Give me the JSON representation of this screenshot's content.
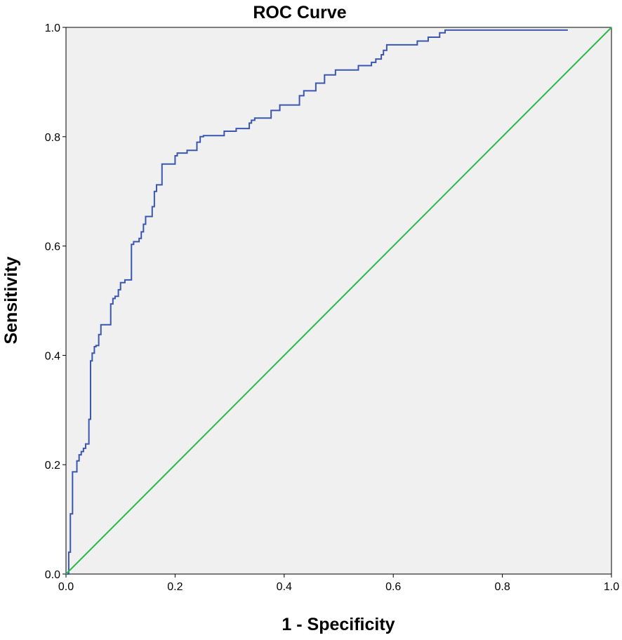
{
  "chart_data": {
    "type": "line",
    "title": "ROC Curve",
    "xlabel": "1 - Specificity",
    "ylabel": "Sensitivity",
    "xlim": [
      0.0,
      1.0
    ],
    "ylim": [
      0.0,
      1.0
    ],
    "x_ticks": [
      "0.0",
      "0.2",
      "0.4",
      "0.6",
      "0.8",
      "1.0"
    ],
    "y_ticks": [
      "0.0",
      "0.2",
      "0.4",
      "0.6",
      "0.8",
      "1.0"
    ],
    "grid": false,
    "legend": "none",
    "plot_background": "#f0f0f0",
    "series": [
      {
        "color": "#3a56b0",
        "step": true,
        "x": [
          0.0,
          0.005,
          0.008,
          0.012,
          0.02,
          0.024,
          0.028,
          0.032,
          0.036,
          0.042,
          0.045,
          0.048,
          0.052,
          0.055,
          0.06,
          0.064,
          0.068,
          0.082,
          0.086,
          0.09,
          0.096,
          0.1,
          0.108,
          0.12,
          0.124,
          0.134,
          0.138,
          0.142,
          0.146,
          0.152,
          0.158,
          0.162,
          0.166,
          0.17,
          0.176,
          0.184,
          0.2,
          0.204,
          0.21,
          0.222,
          0.24,
          0.246,
          0.252,
          0.29,
          0.312,
          0.336,
          0.34,
          0.346,
          0.37,
          0.376,
          0.392,
          0.41,
          0.428,
          0.436,
          0.446,
          0.458,
          0.474,
          0.494,
          0.536,
          0.56,
          0.568,
          0.578,
          0.582,
          0.588,
          0.592,
          0.644,
          0.664,
          0.685,
          0.695,
          0.705,
          0.92
        ],
        "y": [
          0.0,
          0.04,
          0.11,
          0.187,
          0.207,
          0.218,
          0.224,
          0.23,
          0.238,
          0.283,
          0.39,
          0.404,
          0.416,
          0.418,
          0.438,
          0.456,
          0.456,
          0.494,
          0.504,
          0.508,
          0.52,
          0.533,
          0.538,
          0.603,
          0.608,
          0.614,
          0.626,
          0.64,
          0.654,
          0.654,
          0.672,
          0.7,
          0.712,
          0.712,
          0.75,
          0.75,
          0.765,
          0.77,
          0.77,
          0.775,
          0.79,
          0.8,
          0.802,
          0.81,
          0.815,
          0.825,
          0.83,
          0.834,
          0.834,
          0.848,
          0.858,
          0.858,
          0.875,
          0.884,
          0.884,
          0.898,
          0.913,
          0.922,
          0.93,
          0.936,
          0.942,
          0.95,
          0.958,
          0.968,
          0.968,
          0.975,
          0.982,
          0.99,
          0.995,
          0.995,
          0.995
        ]
      },
      {
        "color": "#2ab84a",
        "step": false,
        "x": [
          0.0,
          1.0
        ],
        "y": [
          0.0,
          1.0
        ]
      }
    ]
  }
}
